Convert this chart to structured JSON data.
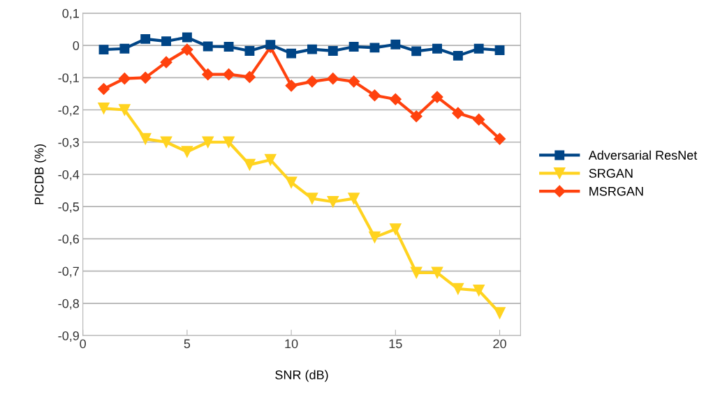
{
  "chart_data": {
    "type": "line",
    "xlabel": "SNR (dB)",
    "ylabel": "PICDB (%)",
    "x": [
      1,
      2,
      3,
      4,
      5,
      6,
      7,
      8,
      9,
      10,
      11,
      12,
      13,
      14,
      15,
      16,
      17,
      18,
      19,
      20
    ],
    "series": [
      {
        "name": "Adversarial ResNet",
        "color": "#004586",
        "marker": "square",
        "values": [
          -0.013,
          -0.01,
          0.02,
          0.013,
          0.025,
          -0.003,
          -0.004,
          -0.017,
          0.002,
          -0.025,
          -0.012,
          -0.017,
          -0.004,
          -0.007,
          0.003,
          -0.018,
          -0.01,
          -0.032,
          -0.01,
          -0.015
        ]
      },
      {
        "name": "SRGAN",
        "color": "#ffd320",
        "marker": "triangle",
        "values": [
          -0.195,
          -0.2,
          -0.29,
          -0.3,
          -0.33,
          -0.3,
          -0.3,
          -0.37,
          -0.355,
          -0.425,
          -0.475,
          -0.485,
          -0.475,
          -0.595,
          -0.57,
          -0.705,
          -0.705,
          -0.755,
          -0.76,
          -0.83
        ]
      },
      {
        "name": "MSRGAN",
        "color": "#ff420e",
        "marker": "diamond",
        "values": [
          -0.135,
          -0.103,
          -0.1,
          -0.052,
          -0.013,
          -0.09,
          -0.09,
          -0.098,
          -0.005,
          -0.125,
          -0.112,
          -0.103,
          -0.112,
          -0.155,
          -0.167,
          -0.22,
          -0.16,
          -0.21,
          -0.23,
          -0.29
        ]
      }
    ],
    "xlim": [
      0,
      21
    ],
    "xticks": [
      0,
      5,
      10,
      15,
      20
    ],
    "ylim": [
      -0.9,
      0.1
    ],
    "yticks": [
      {
        "value": 0.1,
        "label": "0,1"
      },
      0,
      {
        "value": -0.1,
        "label": "-0,1"
      },
      {
        "value": -0.2,
        "label": "-0,2"
      },
      {
        "value": -0.3,
        "label": "-0,3"
      },
      {
        "value": -0.4,
        "label": "-0,4"
      },
      {
        "value": -0.5,
        "label": "-0,5"
      },
      {
        "value": -0.6,
        "label": "-0,6"
      },
      {
        "value": -0.7,
        "label": "-0,7"
      },
      {
        "value": -0.8,
        "label": "-0,8"
      },
      {
        "value": -0.9,
        "label": "-0,9"
      }
    ],
    "grid": "y",
    "legend": "right",
    "line_style": "solid"
  }
}
